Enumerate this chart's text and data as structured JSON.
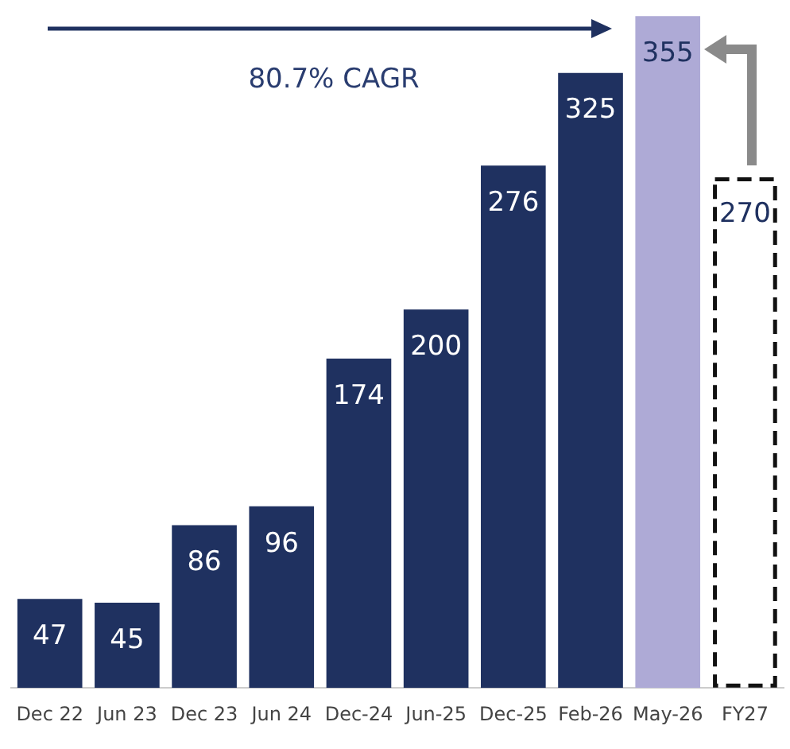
{
  "chart_data": {
    "type": "bar",
    "categories": [
      "Dec 22",
      "Jun 23",
      "Dec 23",
      "Jun 24",
      "Dec-24",
      "Jun-25",
      "Dec-25",
      "Feb-26",
      "May-26",
      "FY27"
    ],
    "series": [
      {
        "colors": [
          "#1f3160",
          "#1f3160",
          "#1f3160",
          "#1f3160",
          "#1f3160",
          "#1f3160",
          "#1f3160",
          "#1f3160",
          "#aeaad6",
          null
        ],
        "values": [
          47,
          45,
          86,
          96,
          174,
          200,
          276,
          325,
          355,
          null
        ]
      },
      {
        "color": "#111111",
        "line_style": "dashed",
        "values": [
          null,
          null,
          null,
          null,
          null,
          null,
          null,
          null,
          null,
          270
        ]
      }
    ],
    "data_labels": true,
    "grid": false,
    "legend": false,
    "annotations": [
      "80.7% CAGR"
    ]
  }
}
